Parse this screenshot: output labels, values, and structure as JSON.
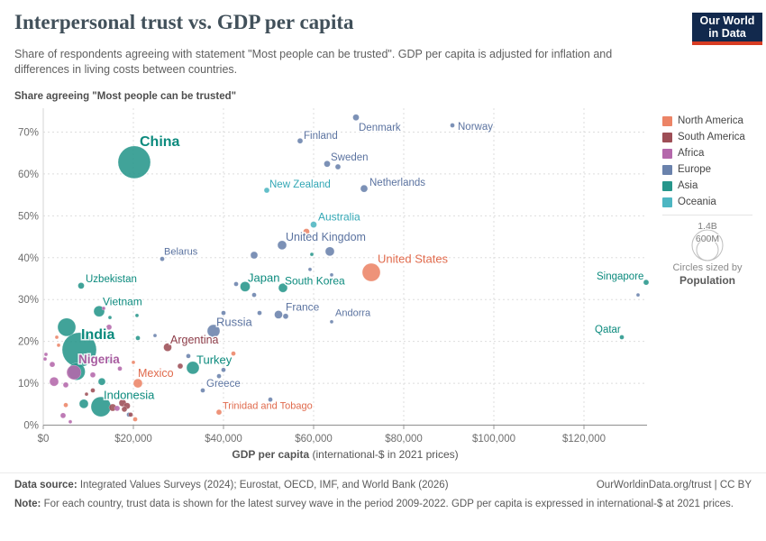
{
  "header": {
    "title": "Interpersonal trust vs. GDP per capita",
    "subtitle": "Share of respondents agreeing with statement \"Most people can be trusted\". GDP per capita is adjusted for inflation and differences in living costs between countries.",
    "logo": {
      "line1": "Our World",
      "line2": "in Data"
    }
  },
  "colors": {
    "north_america": "#ec8466",
    "south_america": "#9d4e56",
    "africa": "#b468ab",
    "europe": "#6a82ac",
    "asia": "#27968b",
    "oceania": "#4db6c2"
  },
  "label_colors": {
    "north_america": "#e06a4c",
    "south_america": "#8c3b47",
    "africa": "#a85ca0",
    "europe": "#5b73a0",
    "asia": "#0b8a7d",
    "oceania": "#33a7b5"
  },
  "chart_data": {
    "type": "scatter",
    "title": "Interpersonal trust vs. GDP per capita",
    "y_title": "Share agreeing \"Most people can be trusted\"",
    "xlabel_bold": "GDP per capita",
    "xlabel_rest": " (international-$ in 2021 prices)",
    "xlim": [
      0,
      134000
    ],
    "ylim": [
      0,
      75
    ],
    "grid": "dashed",
    "legend_position": "right",
    "x_ticks": [
      {
        "v": 0,
        "label": "$0"
      },
      {
        "v": 20000,
        "label": "$20,000"
      },
      {
        "v": 40000,
        "label": "$40,000"
      },
      {
        "v": 60000,
        "label": "$60,000"
      },
      {
        "v": 80000,
        "label": "$80,000"
      },
      {
        "v": 100000,
        "label": "$100,000"
      },
      {
        "v": 120000,
        "label": "$120,000"
      }
    ],
    "y_ticks": [
      {
        "v": 0,
        "label": "0%"
      },
      {
        "v": 10,
        "label": "10%"
      },
      {
        "v": 20,
        "label": "20%"
      },
      {
        "v": 30,
        "label": "30%"
      },
      {
        "v": 40,
        "label": "40%"
      },
      {
        "v": 50,
        "label": "50%"
      },
      {
        "v": 60,
        "label": "60%"
      },
      {
        "v": 70,
        "label": "70%"
      }
    ],
    "points": [
      {
        "n": "China",
        "c": "asia",
        "g": 20200,
        "t": 62.8,
        "r": 18,
        "l": [
          155,
          147,
          16,
          700
        ]
      },
      {
        "n": "Finland",
        "c": "europe",
        "g": 57000,
        "t": 67.9,
        "r": 3,
        "l": [
          337,
          143,
          11.5,
          400
        ]
      },
      {
        "n": "Denmark",
        "c": "europe",
        "g": 69400,
        "t": 73.5,
        "r": 3.5,
        "l": [
          398,
          134,
          11.5,
          400
        ]
      },
      {
        "n": "Norway",
        "c": "europe",
        "g": 90800,
        "t": 71.6,
        "r": 2.5,
        "l": [
          508,
          133,
          11.5,
          400
        ]
      },
      {
        "n": "Sweden",
        "c": "europe",
        "g": 63000,
        "t": 62.4,
        "r": 3.5,
        "l": [
          367,
          167,
          11.5,
          400
        ]
      },
      {
        "n": "Netherlands",
        "c": "europe",
        "g": 71200,
        "t": 56.5,
        "r": 4,
        "l": [
          410,
          195,
          11.5,
          400
        ]
      },
      {
        "n": "New Zealand",
        "c": "oceania",
        "g": 49600,
        "t": 56.1,
        "r": 3,
        "l": [
          299,
          197,
          11.5,
          400
        ]
      },
      {
        "n": "Australia",
        "c": "oceania",
        "g": 60000,
        "t": 47.9,
        "r": 3.5,
        "l": [
          353,
          233,
          12,
          400
        ]
      },
      {
        "n": "United Kingdom",
        "c": "europe",
        "g": 53000,
        "t": 43.0,
        "r": 5,
        "l": [
          317,
          255,
          12.5,
          400
        ]
      },
      {
        "n": "United States",
        "c": "north_america",
        "g": 72800,
        "t": 36.5,
        "r": 10,
        "l": [
          419,
          279,
          13,
          400
        ]
      },
      {
        "n": "Belarus",
        "c": "europe",
        "g": 26400,
        "t": 39.7,
        "r": 2.5,
        "l": [
          182,
          272,
          11,
          400
        ]
      },
      {
        "n": "Japan",
        "c": "asia",
        "g": 44800,
        "t": 33.1,
        "r": 5.5,
        "l": [
          275,
          300,
          13,
          400
        ]
      },
      {
        "n": "South Korea",
        "c": "asia",
        "g": 53200,
        "t": 32.8,
        "r": 5,
        "l": [
          316,
          304,
          12,
          400
        ]
      },
      {
        "n": "France",
        "c": "europe",
        "g": 52200,
        "t": 26.4,
        "r": 4.5,
        "l": [
          317,
          333,
          12,
          400
        ]
      },
      {
        "n": "Andorra",
        "c": "europe",
        "g": 64000,
        "t": 24.7,
        "r": 2,
        "l": [
          372,
          340,
          11,
          400
        ]
      },
      {
        "n": "Russia",
        "c": "europe",
        "g": 37800,
        "t": 22.5,
        "r": 7,
        "l": [
          240,
          349,
          13,
          400
        ]
      },
      {
        "n": "Uzbekistan",
        "c": "asia",
        "g": 8400,
        "t": 33.3,
        "r": 3.5,
        "l": [
          95,
          302,
          11.5,
          400
        ]
      },
      {
        "n": "Vietnam",
        "c": "asia",
        "g": 12400,
        "t": 27.2,
        "r": 6,
        "l": [
          114,
          327,
          12,
          400
        ]
      },
      {
        "n": "India",
        "c": "asia",
        "g": 8000,
        "t": 18.0,
        "r": 19,
        "l": [
          90,
          361,
          16,
          700
        ]
      },
      {
        "n": "Nigeria",
        "c": "africa",
        "g": 6800,
        "t": 12.6,
        "r": 8,
        "l": [
          87,
          390,
          13.5,
          700
        ]
      },
      {
        "n": "Argentina",
        "c": "south_america",
        "g": 27600,
        "t": 18.6,
        "r": 4.5,
        "l": [
          189,
          369,
          12.5,
          400
        ]
      },
      {
        "n": "Turkey",
        "c": "asia",
        "g": 33200,
        "t": 13.7,
        "r": 7,
        "l": [
          218,
          391,
          13,
          400
        ]
      },
      {
        "n": "Mexico",
        "c": "north_america",
        "g": 21000,
        "t": 10.0,
        "r": 5,
        "l": [
          153,
          406,
          12.5,
          400
        ]
      },
      {
        "n": "Greece",
        "c": "europe",
        "g": 35400,
        "t": 8.3,
        "r": 2.5,
        "l": [
          229,
          418,
          11.5,
          400
        ]
      },
      {
        "n": "Indonesia",
        "c": "asia",
        "g": 12800,
        "t": 4.4,
        "r": 11,
        "l": [
          115,
          430,
          13,
          400
        ]
      },
      {
        "n": "Trinidad and Tobago",
        "c": "north_america",
        "g": 39000,
        "t": 3.1,
        "r": 3,
        "l": [
          247,
          443,
          11,
          400
        ]
      },
      {
        "n": "Singapore",
        "c": "asia",
        "g": 133800,
        "t": 34.1,
        "r": 3,
        "l": [
          662,
          299,
          11.5,
          400
        ]
      },
      {
        "n": "Qatar",
        "c": "asia",
        "g": 128400,
        "t": 21.0,
        "r": 2.5,
        "l": [
          660,
          358,
          11.5,
          400
        ]
      },
      {
        "c": "europe",
        "g": 65400,
        "t": 61.7,
        "r": 3
      },
      {
        "c": "europe",
        "g": 63600,
        "t": 41.5,
        "r": 5
      },
      {
        "c": "europe",
        "g": 46800,
        "t": 40.6,
        "r": 4
      },
      {
        "c": "europe",
        "g": 42800,
        "t": 33.7,
        "r": 2.5
      },
      {
        "c": "europe",
        "g": 46800,
        "t": 31.1,
        "r": 2.5
      },
      {
        "c": "europe",
        "g": 59200,
        "t": 37.2,
        "r": 2
      },
      {
        "c": "europe",
        "g": 64000,
        "t": 35.9,
        "r": 2
      },
      {
        "c": "europe",
        "g": 53800,
        "t": 26.0,
        "r": 3
      },
      {
        "c": "europe",
        "g": 40000,
        "t": 26.8,
        "r": 2.5
      },
      {
        "c": "europe",
        "g": 48000,
        "t": 26.8,
        "r": 2.5
      },
      {
        "c": "europe",
        "g": 32200,
        "t": 16.5,
        "r": 2.5
      },
      {
        "c": "europe",
        "g": 39000,
        "t": 11.7,
        "r": 2.5
      },
      {
        "c": "europe",
        "g": 40000,
        "t": 13.2,
        "r": 2.5
      },
      {
        "c": "europe",
        "g": 50400,
        "t": 6.1,
        "r": 2.5
      },
      {
        "c": "europe",
        "g": 19000,
        "t": 2.5,
        "r": 2.5
      },
      {
        "c": "europe",
        "g": 24800,
        "t": 21.4,
        "r": 2
      },
      {
        "c": "europe",
        "g": 132000,
        "t": 31.1,
        "r": 2
      },
      {
        "c": "asia",
        "g": 14800,
        "t": 25.7,
        "r": 2
      },
      {
        "c": "asia",
        "g": 20800,
        "t": 26.2,
        "r": 2
      },
      {
        "c": "asia",
        "g": 5200,
        "t": 23.4,
        "r": 10
      },
      {
        "c": "asia",
        "g": 21000,
        "t": 20.8,
        "r": 2.5
      },
      {
        "c": "asia",
        "g": 7400,
        "t": 12.8,
        "r": 9.5
      },
      {
        "c": "asia",
        "g": 13000,
        "t": 10.4,
        "r": 4
      },
      {
        "c": "asia",
        "g": 9000,
        "t": 5.1,
        "r": 5
      },
      {
        "c": "asia",
        "g": 15000,
        "t": 15.4,
        "r": 3
      },
      {
        "c": "asia",
        "g": 59600,
        "t": 40.8,
        "r": 2
      },
      {
        "c": "africa",
        "g": 13400,
        "t": 27.9,
        "r": 2
      },
      {
        "c": "africa",
        "g": 14600,
        "t": 23.4,
        "r": 3
      },
      {
        "c": "africa",
        "g": 600,
        "t": 16.9,
        "r": 2
      },
      {
        "c": "africa",
        "g": 2000,
        "t": 14.5,
        "r": 3
      },
      {
        "c": "africa",
        "g": 400,
        "t": 15.8,
        "r": 2
      },
      {
        "c": "africa",
        "g": 2400,
        "t": 10.4,
        "r": 5
      },
      {
        "c": "africa",
        "g": 5000,
        "t": 9.6,
        "r": 3
      },
      {
        "c": "africa",
        "g": 4400,
        "t": 2.3,
        "r": 3
      },
      {
        "c": "africa",
        "g": 16400,
        "t": 4.0,
        "r": 3
      },
      {
        "c": "africa",
        "g": 11000,
        "t": 12.0,
        "r": 3
      },
      {
        "c": "africa",
        "g": 17000,
        "t": 13.5,
        "r": 2.5
      },
      {
        "c": "africa",
        "g": 6000,
        "t": 0.8,
        "r": 2
      },
      {
        "c": "south_america",
        "g": 30400,
        "t": 14.1,
        "r": 3
      },
      {
        "c": "south_america",
        "g": 11000,
        "t": 8.3,
        "r": 2.5
      },
      {
        "c": "south_america",
        "g": 15400,
        "t": 4.2,
        "r": 4
      },
      {
        "c": "south_america",
        "g": 17600,
        "t": 5.3,
        "r": 4
      },
      {
        "c": "south_america",
        "g": 18600,
        "t": 4.6,
        "r": 3.5
      },
      {
        "c": "south_america",
        "g": 18000,
        "t": 3.8,
        "r": 3
      },
      {
        "c": "south_america",
        "g": 19400,
        "t": 2.5,
        "r": 2.5
      },
      {
        "c": "south_america",
        "g": 9600,
        "t": 7.4,
        "r": 2
      },
      {
        "c": "north_america",
        "g": 58400,
        "t": 46.2,
        "r": 3.5
      },
      {
        "c": "north_america",
        "g": 3000,
        "t": 21.0,
        "r": 2
      },
      {
        "c": "north_america",
        "g": 3400,
        "t": 19.1,
        "r": 2
      },
      {
        "c": "north_america",
        "g": 5000,
        "t": 4.8,
        "r": 2.5
      },
      {
        "c": "north_america",
        "g": 42200,
        "t": 17.1,
        "r": 2.5
      },
      {
        "c": "north_america",
        "g": 20400,
        "t": 1.4,
        "r": 2.5
      },
      {
        "c": "north_america",
        "g": 20000,
        "t": 15.0,
        "r": 2
      }
    ]
  },
  "legend": {
    "items": [
      {
        "key": "north_america",
        "label": "North America"
      },
      {
        "key": "south_america",
        "label": "South America"
      },
      {
        "key": "africa",
        "label": "Africa"
      },
      {
        "key": "europe",
        "label": "Europe"
      },
      {
        "key": "asia",
        "label": "Asia"
      },
      {
        "key": "oceania",
        "label": "Oceania"
      }
    ],
    "size_legend": {
      "outer_label": "1.4B",
      "inner_label": "600M",
      "caption": "Circles sized by",
      "caption_bold": "Population"
    }
  },
  "footer": {
    "source_label": "Data source:",
    "source_text": " Integrated Values Surveys (2024); Eurostat, OECD, IMF, and World Bank (2026)",
    "link": "OurWorldinData.org/trust | CC BY",
    "note_label": "Note:",
    "note_text": " For each country, trust data is shown for the latest survey wave in the period 2009-2022. GDP per capita is expressed in international-$ at 2021 prices."
  }
}
